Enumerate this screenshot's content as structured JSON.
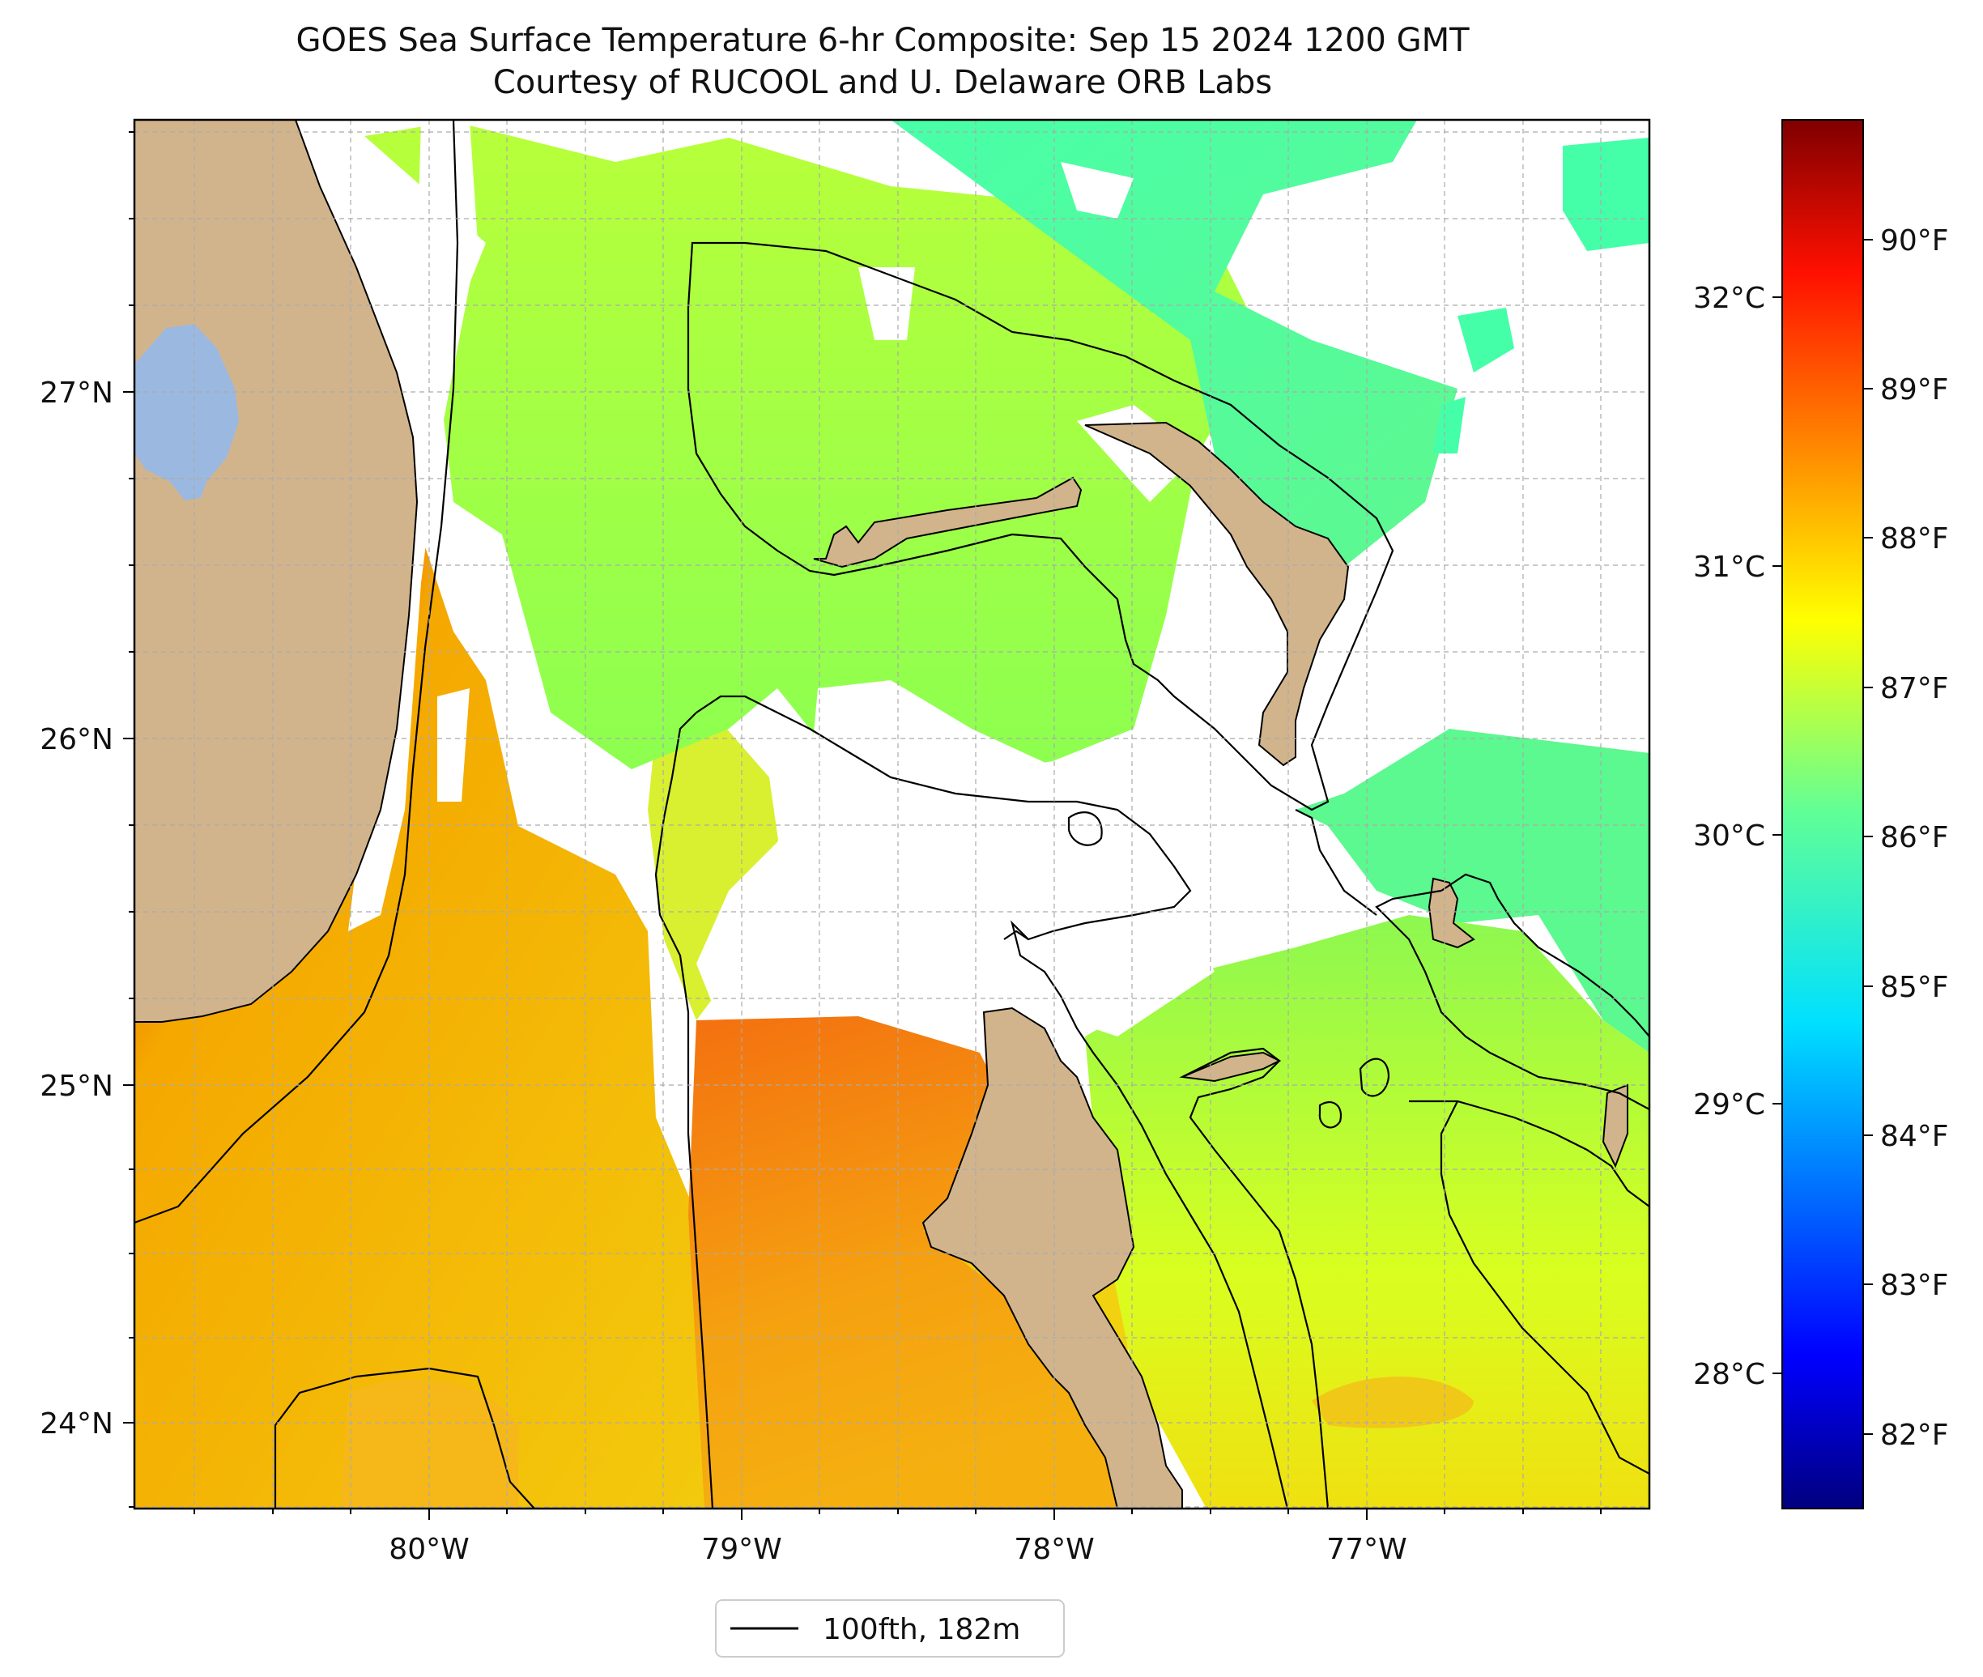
{
  "title": {
    "line1": "GOES Sea Surface Temperature 6-hr Composite: Sep 15 2024 1200 GMT",
    "line2": "Courtesy of RUCOOL and U. Delaware ORB Labs"
  },
  "map": {
    "x_ticks": [
      "80°W",
      "79°W",
      "78°W",
      "77°W"
    ],
    "y_ticks": [
      "27°N",
      "26°N",
      "25°N",
      "24°N"
    ],
    "legend_label": "100fth, 182m",
    "colors": {
      "land": "#d2b48c",
      "lake": "#9bb8e0",
      "contour": "#000000",
      "grid": "#aaaaaa"
    }
  },
  "colorbar": {
    "celsius_ticks": [
      "32°C",
      "31°C",
      "30°C",
      "29°C",
      "28°C"
    ],
    "fahrenheit_ticks": [
      "90°F",
      "89°F",
      "88°F",
      "87°F",
      "86°F",
      "85°F",
      "84°F",
      "83°F",
      "82°F"
    ],
    "colormap": "jet",
    "range_f": [
      81.5,
      90.7
    ]
  }
}
